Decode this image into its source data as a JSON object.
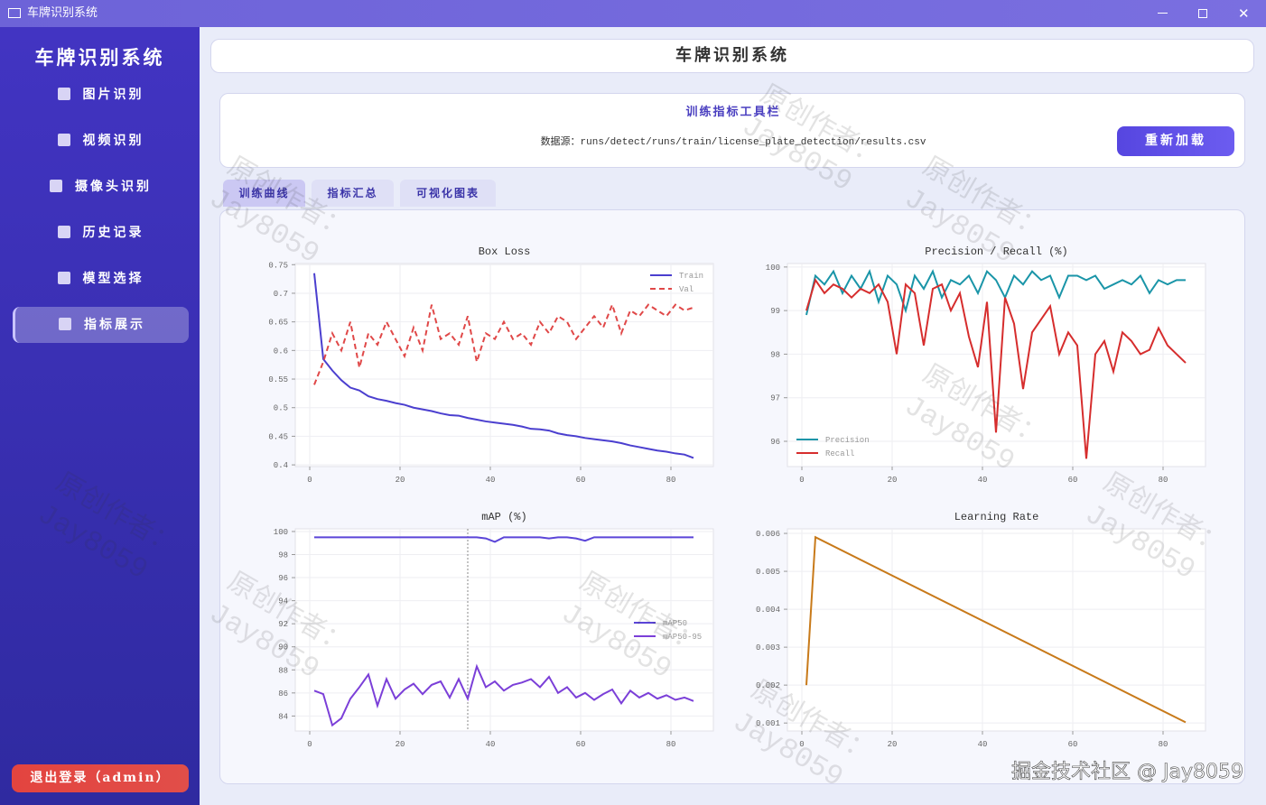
{
  "window": {
    "title": "车牌识别系统"
  },
  "sidebar": {
    "title": "车牌识别系统",
    "menu": [
      "图片识别",
      "视频识别",
      "摄像头识别",
      "历史记录",
      "模型选择",
      "指标展示"
    ],
    "active": 5,
    "logout": "退出登录（admin）"
  },
  "header": {
    "title": "车牌识别系统"
  },
  "toolbar": {
    "title": "训练指标工具栏",
    "source": "数据源：runs/detect/runs/train/license_plate_detection/results.csv",
    "button": "重新加载"
  },
  "tabs": {
    "items": [
      "训练曲线",
      "指标汇总",
      "可视化图表"
    ],
    "active": 0
  },
  "watermark": [
    "原创作者：",
    "Jay8059"
  ],
  "footer": "掘金技术社区 @ Jay8059",
  "chart_data": [
    {
      "type": "line",
      "title": "Box Loss",
      "x": [
        1,
        3,
        5,
        7,
        9,
        11,
        13,
        15,
        17,
        19,
        21,
        23,
        25,
        27,
        29,
        31,
        33,
        35,
        37,
        39,
        41,
        43,
        45,
        47,
        49,
        51,
        53,
        55,
        57,
        59,
        61,
        63,
        65,
        67,
        69,
        71,
        73,
        75,
        77,
        79,
        81,
        83,
        85
      ],
      "series": [
        {
          "name": "Train",
          "color": "#4b3fcf",
          "linestyle": "solid",
          "values": [
            0.735,
            0.585,
            0.565,
            0.548,
            0.535,
            0.53,
            0.52,
            0.515,
            0.512,
            0.508,
            0.505,
            0.5,
            0.497,
            0.494,
            0.49,
            0.487,
            0.486,
            0.482,
            0.479,
            0.476,
            0.474,
            0.472,
            0.47,
            0.467,
            0.463,
            0.462,
            0.46,
            0.455,
            0.452,
            0.45,
            0.447,
            0.445,
            0.443,
            0.441,
            0.438,
            0.434,
            0.431,
            0.428,
            0.425,
            0.423,
            0.42,
            0.418,
            0.412
          ]
        },
        {
          "name": "Val",
          "color": "#e04848",
          "linestyle": "dashed",
          "values": [
            0.54,
            0.58,
            0.63,
            0.6,
            0.65,
            0.57,
            0.63,
            0.61,
            0.65,
            0.62,
            0.59,
            0.64,
            0.6,
            0.68,
            0.62,
            0.63,
            0.61,
            0.66,
            0.58,
            0.63,
            0.62,
            0.65,
            0.62,
            0.63,
            0.61,
            0.65,
            0.63,
            0.66,
            0.65,
            0.62,
            0.64,
            0.66,
            0.64,
            0.68,
            0.63,
            0.67,
            0.66,
            0.68,
            0.67,
            0.66,
            0.68,
            0.67,
            0.675
          ]
        }
      ],
      "xlim": [
        -3.2,
        89.4
      ],
      "ylim": [
        0.397,
        0.752
      ],
      "xticks": [
        0,
        20,
        40,
        60,
        80
      ],
      "yticks": [
        0.4,
        0.45,
        0.5,
        0.55,
        0.6,
        0.65,
        0.7,
        0.75
      ],
      "grid": true,
      "legend": "upper right"
    },
    {
      "type": "line",
      "title": "Precision / Recall (%)",
      "x": [
        1,
        3,
        5,
        7,
        9,
        11,
        13,
        15,
        17,
        19,
        21,
        23,
        25,
        27,
        29,
        31,
        33,
        35,
        37,
        39,
        41,
        43,
        45,
        47,
        49,
        51,
        53,
        55,
        57,
        59,
        61,
        63,
        65,
        67,
        69,
        71,
        73,
        75,
        77,
        79,
        81,
        83,
        85
      ],
      "series": [
        {
          "name": "Precision",
          "color": "#1a95a8",
          "linestyle": "solid",
          "values": [
            98.9,
            99.8,
            99.6,
            99.9,
            99.4,
            99.8,
            99.5,
            99.9,
            99.2,
            99.8,
            99.6,
            99.0,
            99.8,
            99.5,
            99.9,
            99.3,
            99.7,
            99.6,
            99.8,
            99.4,
            99.9,
            99.7,
            99.3,
            99.8,
            99.6,
            99.9,
            99.7,
            99.8,
            99.3,
            99.8,
            99.8,
            99.7,
            99.8,
            99.5,
            99.6,
            99.7,
            99.6,
            99.8,
            99.4,
            99.7,
            99.6,
            99.7,
            99.7
          ]
        },
        {
          "name": "Recall",
          "color": "#d62d2d",
          "linestyle": "solid",
          "values": [
            99.0,
            99.7,
            99.4,
            99.6,
            99.5,
            99.3,
            99.5,
            99.4,
            99.6,
            99.2,
            98.0,
            99.6,
            99.4,
            98.2,
            99.5,
            99.6,
            99.0,
            99.4,
            98.4,
            97.7,
            99.2,
            96.2,
            99.3,
            98.7,
            97.2,
            98.5,
            98.8,
            99.1,
            98.0,
            98.5,
            98.2,
            95.6,
            98.0,
            98.3,
            97.6,
            98.5,
            98.3,
            98.0,
            98.1,
            98.6,
            98.2,
            98.0,
            97.8
          ]
        }
      ],
      "xlim": [
        -3.2,
        89.4
      ],
      "ylim": [
        95.42,
        100.08
      ],
      "xticks": [
        0,
        20,
        40,
        60,
        80
      ],
      "yticks": [
        96,
        97,
        98,
        99,
        100
      ],
      "grid": true,
      "legend": "lower left"
    },
    {
      "type": "line",
      "title": "mAP (%)",
      "x": [
        1,
        3,
        5,
        7,
        9,
        11,
        13,
        15,
        17,
        19,
        21,
        23,
        25,
        27,
        29,
        31,
        33,
        35,
        37,
        39,
        41,
        43,
        45,
        47,
        49,
        51,
        53,
        55,
        57,
        59,
        61,
        63,
        65,
        67,
        69,
        71,
        73,
        75,
        77,
        79,
        81,
        83,
        85
      ],
      "series": [
        {
          "name": "mAP50",
          "color": "#5b45d8",
          "linestyle": "solid",
          "values": [
            99.5,
            99.5,
            99.5,
            99.5,
            99.5,
            99.5,
            99.5,
            99.5,
            99.5,
            99.5,
            99.5,
            99.5,
            99.5,
            99.5,
            99.5,
            99.5,
            99.5,
            99.5,
            99.5,
            99.4,
            99.1,
            99.5,
            99.5,
            99.5,
            99.5,
            99.5,
            99.4,
            99.5,
            99.5,
            99.4,
            99.2,
            99.5,
            99.5,
            99.5,
            99.5,
            99.5,
            99.5,
            99.5,
            99.5,
            99.5,
            99.5,
            99.5,
            99.5
          ]
        },
        {
          "name": "mAP50-95",
          "color": "#7b3fd8",
          "linestyle": "solid",
          "values": [
            86.2,
            85.9,
            83.2,
            83.8,
            85.5,
            86.5,
            87.6,
            84.9,
            87.2,
            85.5,
            86.3,
            86.8,
            85.9,
            86.7,
            87.0,
            85.6,
            87.2,
            85.5,
            88.3,
            86.5,
            87.0,
            86.2,
            86.7,
            86.9,
            87.2,
            86.5,
            87.4,
            86.0,
            86.5,
            85.6,
            86.0,
            85.4,
            85.9,
            86.3,
            85.1,
            86.2,
            85.6,
            86.0,
            85.5,
            85.8,
            85.4,
            85.6,
            85.3
          ]
        }
      ],
      "xlim": [
        -3.2,
        89.4
      ],
      "ylim": [
        82.7,
        100.23
      ],
      "xticks": [
        0,
        20,
        40,
        60,
        80
      ],
      "yticks": [
        84,
        86,
        88,
        90,
        92,
        94,
        96,
        98,
        100
      ],
      "vline": 35,
      "grid": true,
      "legend": "center right"
    },
    {
      "type": "line",
      "title": "Learning Rate",
      "x": [
        1,
        3,
        85
      ],
      "series": [
        {
          "color": "#c87a1a",
          "linestyle": "solid",
          "values": [
            0.002,
            0.0059,
            0.00102
          ]
        }
      ],
      "xlim": [
        -3.2,
        89.4
      ],
      "ylim": [
        0.00079,
        0.00612
      ],
      "xticks": [
        0,
        20,
        40,
        60,
        80
      ],
      "yticks": [
        0.001,
        0.002,
        0.003,
        0.004,
        0.005,
        0.006
      ],
      "grid": true
    }
  ]
}
